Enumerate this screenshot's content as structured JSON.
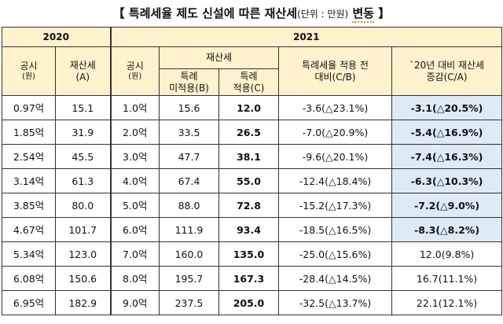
{
  "title": {
    "open_bracket": "【",
    "main": "특례세율 제도 신설에 따른 재산세",
    "unit": "(단위 : 만원)",
    "change": "변동",
    "close_bracket": "】"
  },
  "headers": {
    "year_2020": "2020",
    "year_2021": "2021",
    "public_price_2020": "공시",
    "public_price_2020_unit": "(원)",
    "tax_2020": "재산세",
    "tax_2020_code": "(A)",
    "public_price_2021": "공시",
    "public_price_2021_unit": "(원)",
    "tax_2021_group": "재산세",
    "not_applied_line1": "특례",
    "not_applied_line2": "미적용(B)",
    "applied_line1": "특례",
    "applied_line2": "적용(C)",
    "ratio_line1": "특례세율 적용 전",
    "ratio_line2": "대비(C/B)",
    "change_line1": "`20년 대비 재산세",
    "change_line2": "증감(C/A)"
  },
  "rows": [
    {
      "p2020": "0.97억",
      "a": "15.1",
      "p2021": "1.0억",
      "b": "15.6",
      "c": "12.0",
      "cb": "-3.6(△23.1%)",
      "ca": "-3.1(△20.5%)",
      "highlight": true
    },
    {
      "p2020": "1.85억",
      "a": "31.9",
      "p2021": "2.0억",
      "b": "33.5",
      "c": "26.5",
      "cb": "-7.0(△20.9%)",
      "ca": "-5.4(△16.9%)",
      "highlight": true
    },
    {
      "p2020": "2.54억",
      "a": "45.5",
      "p2021": "3.0억",
      "b": "47.7",
      "c": "38.1",
      "cb": "-9.6(△20.1%)",
      "ca": "-7.4(△16.3%)",
      "highlight": true
    },
    {
      "p2020": "3.14억",
      "a": "61.3",
      "p2021": "4.0억",
      "b": "67.4",
      "c": "55.0",
      "cb": "-12.4(△18.4%)",
      "ca": "-6.3(△10.3%)",
      "highlight": true
    },
    {
      "p2020": "3.85억",
      "a": "80.0",
      "p2021": "5.0억",
      "b": "88.0",
      "c": "72.8",
      "cb": "-15.2(△17.3%)",
      "ca": "-7.2(△9.0%)",
      "highlight": true
    },
    {
      "p2020": "4.67억",
      "a": "101.7",
      "p2021": "6.0억",
      "b": "111.9",
      "c": "93.4",
      "cb": "-18.5(△16.5%)",
      "ca": "-8.3(△8.2%)",
      "highlight": true
    },
    {
      "p2020": "5.34억",
      "a": "123.0",
      "p2021": "7.0억",
      "b": "160.0",
      "c": "135.0",
      "cb": "-25.0(△15.6%)",
      "ca": "12.0(9.8%)",
      "highlight": false
    },
    {
      "p2020": "6.08억",
      "a": "150.6",
      "p2021": "8.0억",
      "b": "195.7",
      "c": "167.3",
      "cb": "-28.4(△14.5%)",
      "ca": "16.7(11.1%)",
      "highlight": false
    },
    {
      "p2020": "6.95억",
      "a": "182.9",
      "p2021": "9.0억",
      "b": "237.5",
      "c": "205.0",
      "cb": "-32.5(△13.7%)",
      "ca": "22.1(12.1%)",
      "highlight": false
    }
  ],
  "colors": {
    "header_bg": "#fff2cc",
    "highlight_bg": "#ddebf7"
  }
}
